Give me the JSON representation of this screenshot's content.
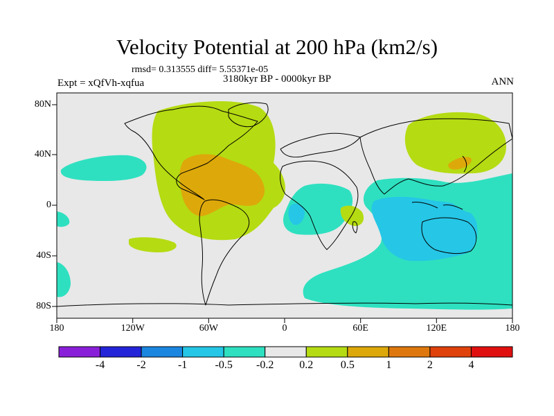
{
  "title": "Velocity Potential at 200 hPa (km2/s)",
  "stats": "rmsd= 0.313555 diff= 5.55371e-05",
  "period": "3180kyr BP - 0000kyr BP",
  "experiment": "Expt = xQfVh-xqfua",
  "season": "ANN",
  "lon_ticks": [
    "180",
    "120W",
    "60W",
    "0",
    "60E",
    "120E",
    "180"
  ],
  "lat_ticks": [
    "80N",
    "40N",
    "0",
    "40S",
    "80S"
  ],
  "colorbar": {
    "labels": [
      "-4",
      "-2",
      "-1",
      "-0.5",
      "-0.2",
      "0.2",
      "0.5",
      "1",
      "2",
      "4"
    ],
    "colors": [
      "#8a1fd9",
      "#2424d8",
      "#1a86e0",
      "#25c6e6",
      "#2ee0c0",
      "#e8e8e8",
      "#b5db12",
      "#dda80a",
      "#de780e",
      "#e0420c",
      "#e01010"
    ]
  },
  "field_colors": {
    "neutral": "#e8e8e8",
    "cyan": "#2ee0c0",
    "light_blue": "#25c6e6",
    "yellow_green": "#b5db12",
    "orange": "#dda80a"
  }
}
